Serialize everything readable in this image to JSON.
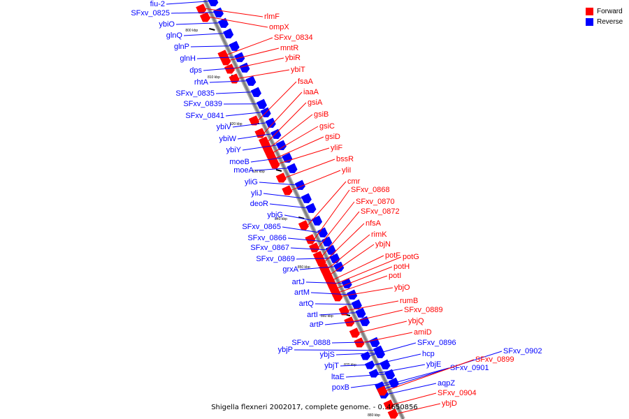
{
  "legend": {
    "forward": {
      "label": "Forward",
      "color": "#ff0000"
    },
    "reverse": {
      "label": "Reverse",
      "color": "#0000ff"
    }
  },
  "caption": "Shigella flexneri 2002017, complete genome. - 0..4650856",
  "ticks": [
    "800 kbp",
    "810 kbp",
    "820 kbp",
    "830 kbp",
    "840 kbp",
    "850 kbp",
    "860 kbp",
    "870 kbp",
    "880 kbp"
  ],
  "forward_genes": [
    "rlmF",
    "ompX",
    "SFxv_0834",
    "mntR",
    "ybiR",
    "ybiT",
    "fsaA",
    "iaaA",
    "gsiA",
    "gsiB",
    "gsiC",
    "gsiD",
    "yliF",
    "bssR",
    "yliI",
    "cmr",
    "SFxv_0868",
    "SFxv_0870",
    "SFxv_0872",
    "nfsA",
    "rimK",
    "ybjN",
    "potF",
    "potG",
    "potH",
    "potI",
    "ybjO",
    "rumB",
    "SFxv_0889",
    "ybjQ",
    "amiD",
    "SFxv_0899",
    "SFxv_0904",
    "ybjD"
  ],
  "reverse_genes": [
    "fiu-2",
    "SFxv_0825",
    "ybiO",
    "glnQ",
    "glnP",
    "glnH",
    "dps",
    "rhtA",
    "SFxv_0835",
    "SFxv_0839",
    "SFxv_0841",
    "ybiV",
    "ybiW",
    "ybiY",
    "moeB",
    "moeA",
    "yliG",
    "yliJ",
    "deoR",
    "ybjG",
    "SFxv_0865",
    "SFxv_0866",
    "SFxv_0867",
    "SFxv_0869",
    "grxA",
    "artJ",
    "artM",
    "artQ",
    "artI",
    "artP",
    "SFxv_0888",
    "ybjP",
    "ybjS",
    "ybjT",
    "ltaE",
    "poxB",
    "SFxv_0896",
    "hcp",
    "ybjE",
    "SFxv_0901",
    "SFxv_0902",
    "aqpZ"
  ]
}
